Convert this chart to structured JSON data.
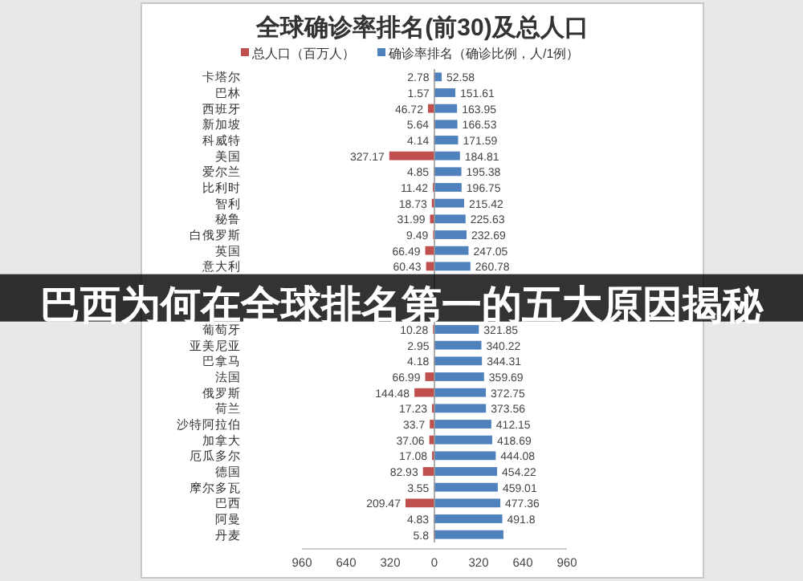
{
  "chart_data": {
    "type": "bar",
    "orientation": "horizontal",
    "title": "全球确诊率排名(前30)及总人口",
    "categories": [
      "卡塔尔",
      "巴林",
      "西班牙",
      "新加坡",
      "科威特",
      "美国",
      "爱尔兰",
      "比利时",
      "智利",
      "秘鲁",
      "白俄罗斯",
      "英国",
      "意大利",
      null,
      null,
      null,
      "葡萄牙",
      "亚美尼亚",
      "巴拿马",
      "法国",
      "俄罗斯",
      "荷兰",
      "沙特阿拉伯",
      "加拿大",
      "厄瓜多尔",
      "德国",
      "摩尔多瓦",
      "巴西",
      "阿曼",
      "丹麦"
    ],
    "series": [
      {
        "name": "总人口（百万人）",
        "color": "#c0504d",
        "axis": "x2",
        "values": [
          2.78,
          1.57,
          46.72,
          5.64,
          4.14,
          327.17,
          4.85,
          11.42,
          18.73,
          31.99,
          9.49,
          66.49,
          60.43,
          null,
          null,
          null,
          10.28,
          2.95,
          4.18,
          66.99,
          144.48,
          17.23,
          33.7,
          37.06,
          17.08,
          82.93,
          3.55,
          209.47,
          4.83,
          5.8
        ],
        "value_labels": [
          "2.78",
          "1.57",
          "46.72",
          "5.64",
          "4.14",
          "327.17",
          "4.85",
          "11.42",
          "18.73",
          "31.99",
          "9.49",
          "66.49",
          "60.43",
          null,
          null,
          null,
          "10.28",
          "2.95",
          "4.18",
          "66.99",
          "144.48",
          "17.23",
          "33.7",
          "37.06",
          "17.08",
          "82.93",
          "3.55",
          "209.47",
          "4.83",
          "5.8"
        ]
      },
      {
        "name": "确诊率排名（确诊比例，人/1例）",
        "color": "#4f81bd",
        "values": [
          52.58,
          151.61,
          163.95,
          166.53,
          171.59,
          184.81,
          195.38,
          196.75,
          215.42,
          225.63,
          232.69,
          247.05,
          260.78,
          null,
          null,
          null,
          321.85,
          340.22,
          344.31,
          359.69,
          372.75,
          373.56,
          412.15,
          418.69,
          444.08,
          454.22,
          459.01,
          477.36,
          491.8,
          500
        ],
        "value_labels": [
          "52.58",
          "151.61",
          "163.95",
          "166.53",
          "171.59",
          "184.81",
          "195.38",
          "196.75",
          "215.42",
          "225.63",
          "232.69",
          "247.05",
          "260.78",
          null,
          null,
          null,
          "321.85",
          "340.22",
          "344.31",
          "359.69",
          "372.75",
          "373.56",
          "412.15",
          "418.69",
          "444.08",
          "454.22",
          "459.01",
          "477.36",
          "491.8",
          null
        ]
      }
    ],
    "xlim": [
      -960,
      960
    ],
    "xticks": [
      0,
      320,
      640,
      960
    ],
    "x2lim": [
      960,
      -960
    ],
    "x2ticks": [
      960,
      640,
      320
    ],
    "legend": "top",
    "annotations": [
      "巴西为何在全球排名第一的五大原因揭秘"
    ]
  }
}
